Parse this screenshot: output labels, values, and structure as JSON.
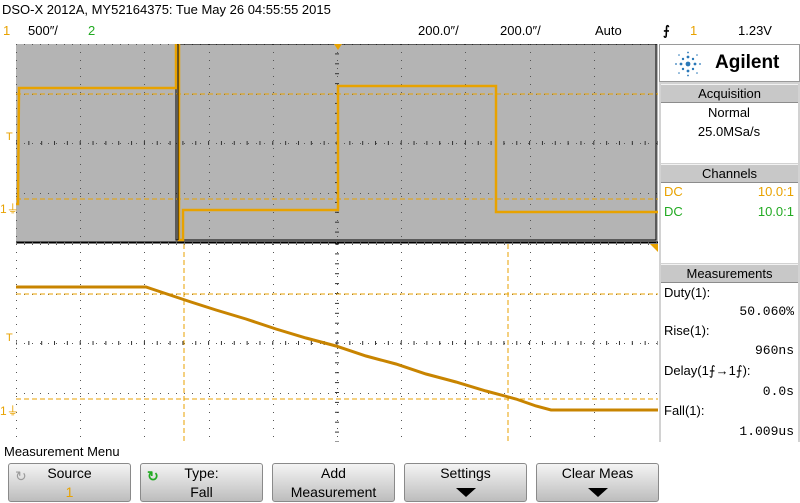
{
  "header": {
    "title": "DSO-X 2012A, MY52164375: Tue May 26 04:55:55 2015",
    "ch1_num": "1",
    "ch1_scale": "500″/",
    "ch2_num": "2",
    "time_scale1": "200.0″/",
    "time_scale2": "200.0″/",
    "trigger_mode": "Auto",
    "trigger_slope_glyph": "⨍",
    "trigger_source": "1",
    "trigger_level": "1.23V"
  },
  "brand": {
    "name": "Agilent"
  },
  "acquisition": {
    "title": "Acquisition",
    "mode": "Normal",
    "rate": "25.0MSa/s"
  },
  "channels": {
    "title": "Channels",
    "items": [
      {
        "coupling": "DC",
        "ratio": "10.0:1",
        "color": "#e8a200"
      },
      {
        "coupling": "DC",
        "ratio": "10.0:1",
        "color": "#22aa22"
      }
    ]
  },
  "measurements": {
    "title": "Measurements",
    "items": [
      {
        "label": "Duty(1):",
        "value": "50.060%"
      },
      {
        "label": "Rise(1):",
        "value": "960ns"
      },
      {
        "label": "Delay(1⨍→1⨍):",
        "value": "0.0s"
      },
      {
        "label": "Fall(1):",
        "value": "1.009us"
      }
    ]
  },
  "markers": {
    "trig": "T",
    "ch1": "1",
    "ground": "⏚"
  },
  "menu": {
    "title": "Measurement Menu",
    "softkeys": [
      {
        "line1": "Source",
        "line2": "1"
      },
      {
        "line1": "Type:",
        "line2": "Fall"
      },
      {
        "line1": "Add",
        "line2": "Measurement"
      },
      {
        "line1": "Settings",
        "line2": ""
      },
      {
        "line1": "Clear Meas",
        "line2": ""
      }
    ]
  },
  "colors": {
    "trace": "#e8a200",
    "main_bg": "#b4b4b4",
    "zoom_bg": "#ffffff"
  }
}
